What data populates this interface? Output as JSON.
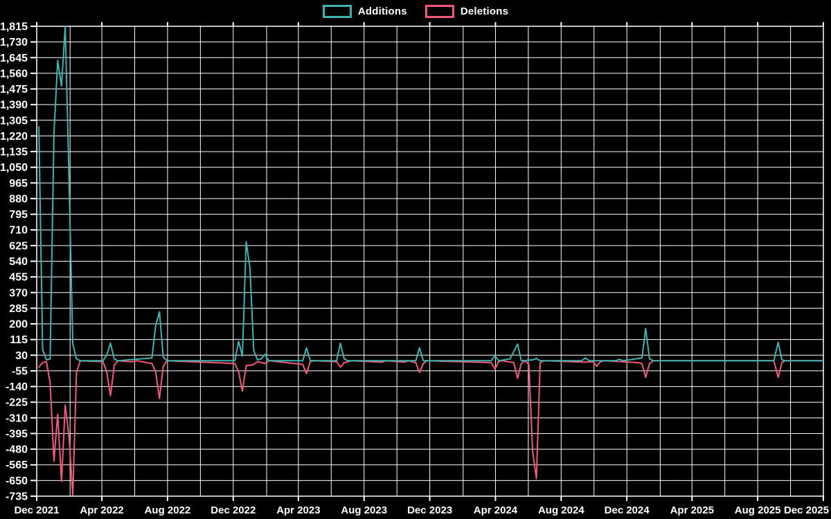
{
  "chart_data": {
    "type": "line",
    "title": "",
    "background_color": "#000000",
    "grid_color": "#ffffff",
    "text_color": "#ffffff",
    "grid": true,
    "legend": {
      "position": "top-center",
      "entries": [
        {
          "label": "Additions",
          "color": "#3db4b4"
        },
        {
          "label": "Deletions",
          "color": "#f4597a"
        }
      ]
    },
    "x_axis": {
      "start": "2021-12-01",
      "end": "2025-12-01",
      "gridline_every_months": 2,
      "labeled_tick_every_months": 4,
      "tick_labels": [
        "Dec 2021",
        "Apr 2022",
        "Aug 2022",
        "Dec 2022",
        "Apr 2023",
        "Aug 2023",
        "Dec 2023",
        "Apr 2024",
        "Aug 2024",
        "Dec 2024",
        "Apr 2025",
        "Aug 2025",
        "Dec 2025"
      ]
    },
    "y_axis": {
      "min": -735,
      "max": 1815,
      "step": 85,
      "tick_labels": [
        "1,815",
        "1,730",
        "1,645",
        "1,560",
        "1,475",
        "1,390",
        "1,305",
        "1,220",
        "1,135",
        "1,050",
        "965",
        "880",
        "795",
        "710",
        "625",
        "540",
        "455",
        "370",
        "285",
        "200",
        "115",
        "30",
        "-55",
        "-140",
        "-225",
        "-310",
        "-395",
        "-480",
        "-565",
        "-650",
        "-735"
      ]
    },
    "series": [
      {
        "name": "Additions",
        "color": "#3db4b4",
        "points": [
          [
            "2021-12-05",
            1270
          ],
          [
            "2021-12-12",
            60
          ],
          [
            "2021-12-19",
            5
          ],
          [
            "2021-12-26",
            10
          ],
          [
            "2022-01-02",
            1230
          ],
          [
            "2022-01-09",
            1630
          ],
          [
            "2022-01-16",
            1490
          ],
          [
            "2022-01-23",
            1815
          ],
          [
            "2022-01-30",
            980
          ],
          [
            "2022-02-06",
            90
          ],
          [
            "2022-02-13",
            10
          ],
          [
            "2022-02-20",
            0
          ],
          [
            "2022-04-03",
            0
          ],
          [
            "2022-04-10",
            30
          ],
          [
            "2022-04-17",
            95
          ],
          [
            "2022-04-24",
            10
          ],
          [
            "2022-05-01",
            0
          ],
          [
            "2022-07-03",
            15
          ],
          [
            "2022-07-10",
            190
          ],
          [
            "2022-07-17",
            265
          ],
          [
            "2022-07-24",
            20
          ],
          [
            "2022-07-31",
            0
          ],
          [
            "2022-12-04",
            0
          ],
          [
            "2022-12-11",
            105
          ],
          [
            "2022-12-18",
            25
          ],
          [
            "2022-12-25",
            645
          ],
          [
            "2023-01-01",
            505
          ],
          [
            "2023-01-08",
            55
          ],
          [
            "2023-01-15",
            5
          ],
          [
            "2023-01-22",
            10
          ],
          [
            "2023-01-29",
            35
          ],
          [
            "2023-02-05",
            0
          ],
          [
            "2023-04-09",
            0
          ],
          [
            "2023-04-16",
            70
          ],
          [
            "2023-04-23",
            0
          ],
          [
            "2023-06-11",
            0
          ],
          [
            "2023-06-18",
            95
          ],
          [
            "2023-06-25",
            10
          ],
          [
            "2023-07-02",
            0
          ],
          [
            "2023-11-05",
            0
          ],
          [
            "2023-11-12",
            70
          ],
          [
            "2023-11-19",
            0
          ],
          [
            "2024-03-24",
            0
          ],
          [
            "2024-03-31",
            27
          ],
          [
            "2024-04-07",
            0
          ],
          [
            "2024-04-28",
            10
          ],
          [
            "2024-05-12",
            90
          ],
          [
            "2024-05-19",
            0
          ],
          [
            "2024-06-09",
            5
          ],
          [
            "2024-06-16",
            12
          ],
          [
            "2024-06-23",
            0
          ],
          [
            "2024-09-08",
            0
          ],
          [
            "2024-09-15",
            15
          ],
          [
            "2024-09-22",
            0
          ],
          [
            "2024-11-10",
            0
          ],
          [
            "2024-11-17",
            8
          ],
          [
            "2024-11-24",
            0
          ],
          [
            "2024-12-29",
            15
          ],
          [
            "2025-01-05",
            175
          ],
          [
            "2025-01-12",
            10
          ],
          [
            "2025-01-19",
            0
          ],
          [
            "2025-08-31",
            0
          ],
          [
            "2025-09-08",
            100
          ],
          [
            "2025-09-15",
            5
          ],
          [
            "2025-09-21",
            0
          ],
          [
            "2025-11-30",
            0
          ]
        ]
      },
      {
        "name": "Deletions",
        "color": "#f4597a",
        "points": [
          [
            "2021-12-05",
            -35
          ],
          [
            "2021-12-12",
            -10
          ],
          [
            "2021-12-19",
            -5
          ],
          [
            "2021-12-26",
            -120
          ],
          [
            "2022-01-02",
            -545
          ],
          [
            "2022-01-09",
            -290
          ],
          [
            "2022-01-16",
            -655
          ],
          [
            "2022-01-23",
            -240
          ],
          [
            "2022-01-30",
            -415
          ],
          [
            "2022-02-06",
            -730
          ],
          [
            "2022-02-13",
            -60
          ],
          [
            "2022-02-20",
            0
          ],
          [
            "2022-04-03",
            -5
          ],
          [
            "2022-04-10",
            -60
          ],
          [
            "2022-04-17",
            -190
          ],
          [
            "2022-04-24",
            -25
          ],
          [
            "2022-05-01",
            0
          ],
          [
            "2022-05-22",
            -5
          ],
          [
            "2022-05-29",
            -5
          ],
          [
            "2022-06-05",
            0
          ],
          [
            "2022-07-03",
            -15
          ],
          [
            "2022-07-10",
            -60
          ],
          [
            "2022-07-17",
            -205
          ],
          [
            "2022-07-24",
            -30
          ],
          [
            "2022-07-31",
            0
          ],
          [
            "2022-12-04",
            -15
          ],
          [
            "2022-12-11",
            -60
          ],
          [
            "2022-12-18",
            -165
          ],
          [
            "2022-12-25",
            -25
          ],
          [
            "2023-01-01",
            -25
          ],
          [
            "2023-01-08",
            -20
          ],
          [
            "2023-01-15",
            -5
          ],
          [
            "2023-01-22",
            -10
          ],
          [
            "2023-01-29",
            -15
          ],
          [
            "2023-02-05",
            0
          ],
          [
            "2023-04-09",
            -20
          ],
          [
            "2023-04-16",
            -70
          ],
          [
            "2023-04-23",
            -5
          ],
          [
            "2023-04-30",
            0
          ],
          [
            "2023-06-11",
            -5
          ],
          [
            "2023-06-18",
            -35
          ],
          [
            "2023-06-25",
            -10
          ],
          [
            "2023-07-02",
            -5
          ],
          [
            "2023-07-09",
            0
          ],
          [
            "2023-09-03",
            -8
          ],
          [
            "2023-09-10",
            0
          ],
          [
            "2023-10-15",
            -8
          ],
          [
            "2023-10-22",
            0
          ],
          [
            "2023-11-05",
            -10
          ],
          [
            "2023-11-12",
            -63
          ],
          [
            "2023-11-19",
            -15
          ],
          [
            "2023-11-26",
            0
          ],
          [
            "2024-03-24",
            -10
          ],
          [
            "2024-03-31",
            -45
          ],
          [
            "2024-04-07",
            -5
          ],
          [
            "2024-04-14",
            0
          ],
          [
            "2024-05-05",
            -10
          ],
          [
            "2024-05-12",
            -95
          ],
          [
            "2024-05-19",
            -15
          ],
          [
            "2024-05-26",
            0
          ],
          [
            "2024-06-02",
            -20
          ],
          [
            "2024-06-09",
            -490
          ],
          [
            "2024-06-16",
            -640
          ],
          [
            "2024-06-23",
            -10
          ],
          [
            "2024-06-30",
            0
          ],
          [
            "2024-09-15",
            -8
          ],
          [
            "2024-09-29",
            -5
          ],
          [
            "2024-10-06",
            -30
          ],
          [
            "2024-10-13",
            -5
          ],
          [
            "2024-10-20",
            0
          ],
          [
            "2024-12-22",
            -10
          ],
          [
            "2024-12-29",
            -15
          ],
          [
            "2025-01-05",
            -90
          ],
          [
            "2025-01-12",
            -15
          ],
          [
            "2025-01-19",
            0
          ],
          [
            "2025-08-31",
            0
          ],
          [
            "2025-09-08",
            -90
          ],
          [
            "2025-09-15",
            -10
          ],
          [
            "2025-09-21",
            0
          ],
          [
            "2025-11-30",
            0
          ]
        ]
      }
    ]
  }
}
